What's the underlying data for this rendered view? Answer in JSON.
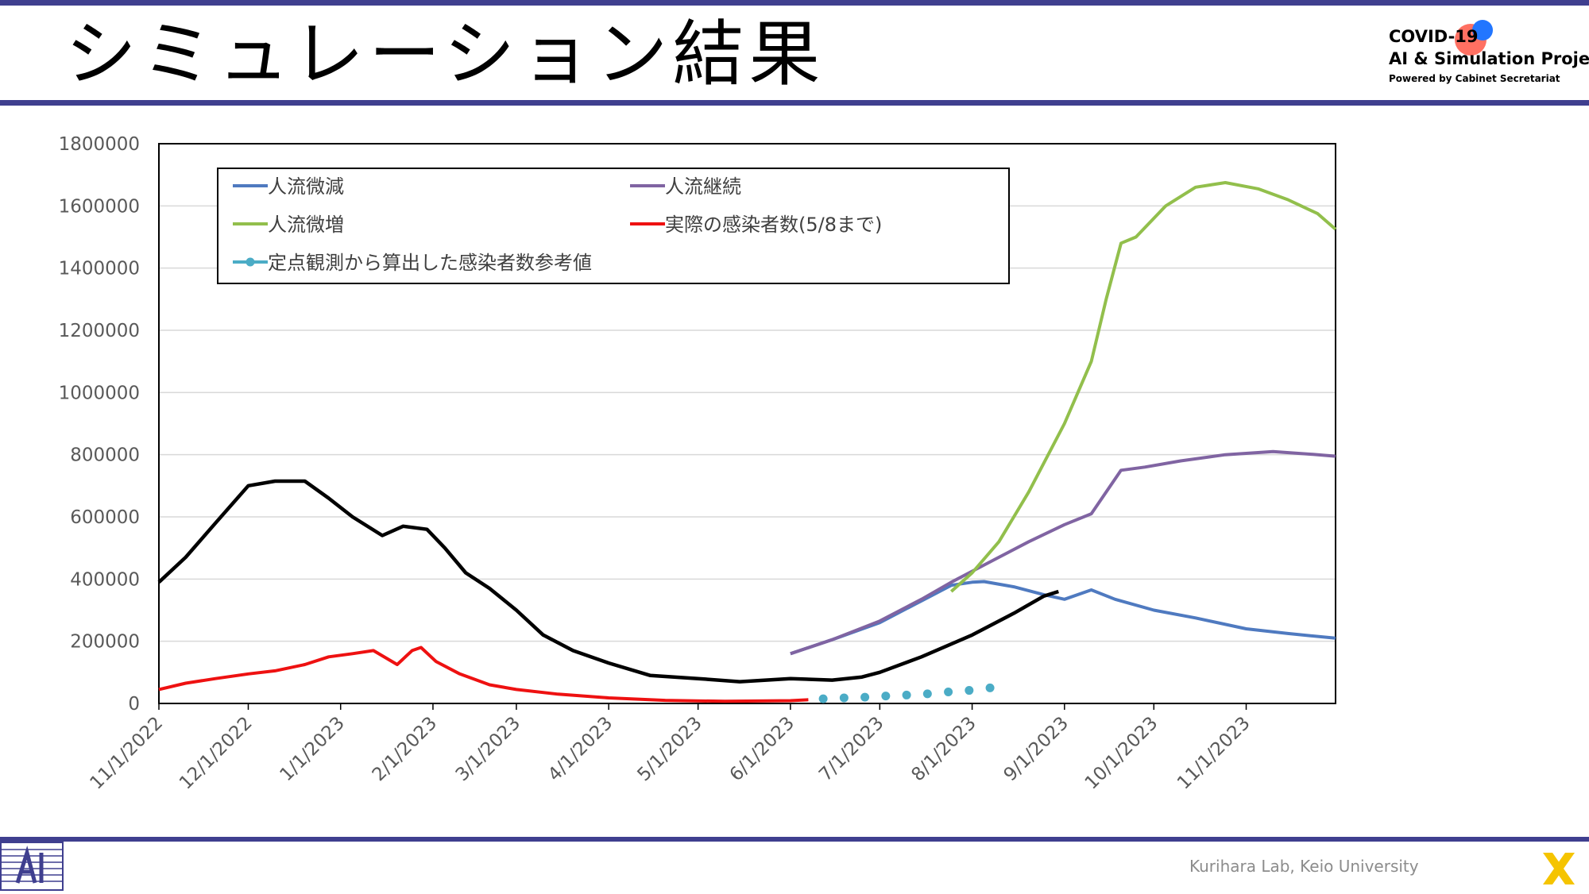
{
  "header": {
    "title": "シミュレーション結果"
  },
  "logo": {
    "line1": "COVID-19",
    "line2": "AI & Simulation Project",
    "line3": "Powered by Cabinet Secretariat"
  },
  "footer": {
    "credit": "Kurihara Lab, Keio University",
    "lab_logo_icon": "ai-lab-icon",
    "brand_icon": "x-mark-icon"
  },
  "colors": {
    "bar": "#3f3f8f",
    "blue": "#4f7ac0",
    "purple": "#8064a2",
    "green": "#92bf4c",
    "red": "#ee1111",
    "cyan": "#4bacc6",
    "black": "#000000"
  },
  "chart_data": {
    "type": "line",
    "title": "",
    "xlabel": "",
    "ylabel": "",
    "ylim": [
      0,
      1800000
    ],
    "grid": true,
    "legend_position": "top-left",
    "y_ticks": [
      "1800000",
      "1600000",
      "1400000",
      "1200000",
      "1000000",
      "800000",
      "600000",
      "400000",
      "200000",
      "0"
    ],
    "x_ticks": [
      "11/1/2022",
      "12/1/2022",
      "1/1/2023",
      "2/1/2023",
      "3/1/2023",
      "4/1/2023",
      "5/1/2023",
      "6/1/2023",
      "7/1/2023",
      "8/1/2023",
      "9/1/2023",
      "10/1/2023",
      "11/1/2023"
    ],
    "series": [
      {
        "name": "人流微減",
        "color": "#4f7ac0",
        "style": "line",
        "points": [
          [
            "2023-06-01",
            160000
          ],
          [
            "2023-06-15",
            205000
          ],
          [
            "2023-07-01",
            260000
          ],
          [
            "2023-07-15",
            330000
          ],
          [
            "2023-07-25",
            380000
          ],
          [
            "2023-08-01",
            390000
          ],
          [
            "2023-08-05",
            392000
          ],
          [
            "2023-08-15",
            375000
          ],
          [
            "2023-08-25",
            350000
          ],
          [
            "2023-09-01",
            335000
          ],
          [
            "2023-09-10",
            365000
          ],
          [
            "2023-09-18",
            335000
          ],
          [
            "2023-10-01",
            300000
          ],
          [
            "2023-10-15",
            275000
          ],
          [
            "2023-11-01",
            240000
          ],
          [
            "2023-11-15",
            225000
          ],
          [
            "2023-12-01",
            210000
          ]
        ]
      },
      {
        "name": "人流継続",
        "color": "#8064a2",
        "style": "line",
        "points": [
          [
            "2023-06-01",
            160000
          ],
          [
            "2023-06-15",
            205000
          ],
          [
            "2023-07-01",
            265000
          ],
          [
            "2023-07-15",
            335000
          ],
          [
            "2023-07-25",
            390000
          ],
          [
            "2023-08-01",
            425000
          ],
          [
            "2023-08-10",
            470000
          ],
          [
            "2023-08-20",
            520000
          ],
          [
            "2023-09-01",
            575000
          ],
          [
            "2023-09-10",
            610000
          ],
          [
            "2023-09-20",
            750000
          ],
          [
            "2023-09-28",
            760000
          ],
          [
            "2023-10-10",
            780000
          ],
          [
            "2023-10-25",
            800000
          ],
          [
            "2023-11-10",
            810000
          ],
          [
            "2023-11-25",
            800000
          ],
          [
            "2023-12-01",
            795000
          ]
        ]
      },
      {
        "name": "人流微増",
        "color": "#92bf4c",
        "style": "line",
        "points": [
          [
            "2023-07-25",
            360000
          ],
          [
            "2023-08-01",
            420000
          ],
          [
            "2023-08-10",
            520000
          ],
          [
            "2023-08-20",
            680000
          ],
          [
            "2023-09-01",
            900000
          ],
          [
            "2023-09-10",
            1100000
          ],
          [
            "2023-09-15",
            1300000
          ],
          [
            "2023-09-20",
            1480000
          ],
          [
            "2023-09-25",
            1500000
          ],
          [
            "2023-10-05",
            1600000
          ],
          [
            "2023-10-15",
            1660000
          ],
          [
            "2023-10-25",
            1675000
          ],
          [
            "2023-11-05",
            1655000
          ],
          [
            "2023-11-15",
            1620000
          ],
          [
            "2023-11-25",
            1575000
          ],
          [
            "2023-12-01",
            1525000
          ]
        ]
      },
      {
        "name": "実際の感染者数(5/8まで)",
        "color": "#ee1111",
        "style": "line",
        "points": [
          [
            "2022-11-01",
            45000
          ],
          [
            "2022-11-10",
            65000
          ],
          [
            "2022-11-20",
            80000
          ],
          [
            "2022-12-01",
            95000
          ],
          [
            "2022-12-10",
            105000
          ],
          [
            "2022-12-20",
            125000
          ],
          [
            "2022-12-28",
            150000
          ],
          [
            "2023-01-05",
            160000
          ],
          [
            "2023-01-12",
            170000
          ],
          [
            "2023-01-20",
            125000
          ],
          [
            "2023-01-25",
            170000
          ],
          [
            "2023-01-28",
            180000
          ],
          [
            "2023-02-02",
            135000
          ],
          [
            "2023-02-10",
            95000
          ],
          [
            "2023-02-20",
            60000
          ],
          [
            "2023-03-01",
            45000
          ],
          [
            "2023-03-15",
            30000
          ],
          [
            "2023-04-01",
            18000
          ],
          [
            "2023-04-20",
            10000
          ],
          [
            "2023-05-10",
            7000
          ],
          [
            "2023-06-01",
            9000
          ],
          [
            "2023-06-07",
            12000
          ]
        ]
      },
      {
        "name": "定点観測から算出した感染者数参考値",
        "color": "#4bacc6",
        "style": "dots",
        "points": [
          [
            "2023-06-12",
            15000
          ],
          [
            "2023-06-19",
            18000
          ],
          [
            "2023-06-26",
            20000
          ],
          [
            "2023-07-03",
            24000
          ],
          [
            "2023-07-10",
            27000
          ],
          [
            "2023-07-17",
            31000
          ],
          [
            "2023-07-24",
            37000
          ],
          [
            "2023-07-31",
            42000
          ],
          [
            "2023-08-07",
            50000
          ]
        ]
      },
      {
        "name": "",
        "color": "#000000",
        "style": "line",
        "points": [
          [
            "2022-11-01",
            390000
          ],
          [
            "2022-11-10",
            470000
          ],
          [
            "2022-11-20",
            580000
          ],
          [
            "2022-12-01",
            700000
          ],
          [
            "2022-12-10",
            715000
          ],
          [
            "2022-12-20",
            715000
          ],
          [
            "2022-12-28",
            660000
          ],
          [
            "2023-01-05",
            600000
          ],
          [
            "2023-01-15",
            540000
          ],
          [
            "2023-01-22",
            570000
          ],
          [
            "2023-01-30",
            560000
          ],
          [
            "2023-02-05",
            500000
          ],
          [
            "2023-02-12",
            420000
          ],
          [
            "2023-02-20",
            370000
          ],
          [
            "2023-03-01",
            300000
          ],
          [
            "2023-03-10",
            220000
          ],
          [
            "2023-03-20",
            170000
          ],
          [
            "2023-04-01",
            130000
          ],
          [
            "2023-04-15",
            90000
          ],
          [
            "2023-05-01",
            80000
          ],
          [
            "2023-05-15",
            70000
          ],
          [
            "2023-06-01",
            80000
          ],
          [
            "2023-06-15",
            75000
          ],
          [
            "2023-06-25",
            85000
          ],
          [
            "2023-07-01",
            100000
          ],
          [
            "2023-07-15",
            150000
          ],
          [
            "2023-08-01",
            220000
          ],
          [
            "2023-08-15",
            290000
          ],
          [
            "2023-08-25",
            345000
          ],
          [
            "2023-08-30",
            360000
          ]
        ]
      }
    ]
  }
}
